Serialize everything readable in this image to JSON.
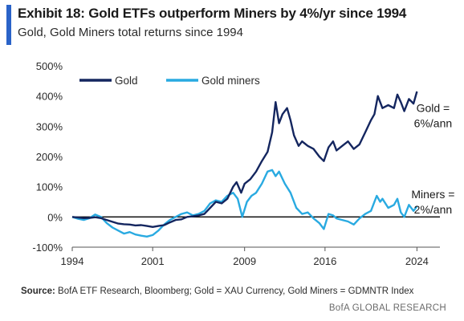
{
  "header": {
    "title": "Exhibit 18: Gold ETFs outperform Miners by 4%/yr since 1994",
    "subtitle": "Gold, Gold Miners total returns since 1994"
  },
  "colors": {
    "accent": "#2a63c8",
    "gold": "#14265f",
    "miners": "#29aae1",
    "zero_line": "#000000",
    "grid": "#d9d9d9"
  },
  "chart_data": {
    "type": "line",
    "title": "",
    "xlabel": "",
    "ylabel": "",
    "xlim": [
      1994,
      2026
    ],
    "ylim": [
      -100,
      500
    ],
    "x_ticks": [
      1994,
      2001,
      2009,
      2016,
      2024
    ],
    "x_tick_labels": [
      "1994",
      "2001",
      "2009",
      "2016",
      "2024"
    ],
    "y_ticks": [
      -100,
      0,
      100,
      200,
      300,
      400,
      500
    ],
    "y_tick_labels": [
      "-100%",
      "0%",
      "100%",
      "200%",
      "300%",
      "400%",
      "500%"
    ],
    "grid": false,
    "legend": {
      "position": "top-left",
      "entries": [
        "Gold",
        "Gold miners"
      ]
    },
    "series": [
      {
        "name": "Gold",
        "color": "#14265f",
        "points": [
          [
            1994.0,
            0
          ],
          [
            1994.5,
            -2
          ],
          [
            1995.0,
            -4
          ],
          [
            1995.5,
            -3
          ],
          [
            1996.0,
            -1
          ],
          [
            1996.5,
            -4
          ],
          [
            1997.0,
            -10
          ],
          [
            1997.5,
            -16
          ],
          [
            1998.0,
            -22
          ],
          [
            1998.5,
            -24
          ],
          [
            1999.0,
            -25
          ],
          [
            1999.5,
            -28
          ],
          [
            2000.0,
            -27
          ],
          [
            2000.5,
            -30
          ],
          [
            2001.0,
            -33
          ],
          [
            2001.5,
            -30
          ],
          [
            2002.0,
            -27
          ],
          [
            2002.5,
            -18
          ],
          [
            2003.0,
            -10
          ],
          [
            2003.5,
            -8
          ],
          [
            2004.0,
            0
          ],
          [
            2004.5,
            2
          ],
          [
            2005.0,
            5
          ],
          [
            2005.5,
            10
          ],
          [
            2006.0,
            30
          ],
          [
            2006.5,
            50
          ],
          [
            2007.0,
            45
          ],
          [
            2007.5,
            60
          ],
          [
            2008.0,
            100
          ],
          [
            2008.3,
            115
          ],
          [
            2008.7,
            80
          ],
          [
            2009.0,
            110
          ],
          [
            2009.5,
            125
          ],
          [
            2010.0,
            150
          ],
          [
            2010.5,
            185
          ],
          [
            2011.0,
            215
          ],
          [
            2011.4,
            280
          ],
          [
            2011.7,
            380
          ],
          [
            2012.0,
            310
          ],
          [
            2012.3,
            340
          ],
          [
            2012.7,
            360
          ],
          [
            2013.0,
            320
          ],
          [
            2013.3,
            270
          ],
          [
            2013.7,
            235
          ],
          [
            2014.0,
            250
          ],
          [
            2014.5,
            235
          ],
          [
            2015.0,
            225
          ],
          [
            2015.5,
            200
          ],
          [
            2015.9,
            185
          ],
          [
            2016.3,
            230
          ],
          [
            2016.7,
            250
          ],
          [
            2017.0,
            220
          ],
          [
            2017.5,
            235
          ],
          [
            2018.0,
            250
          ],
          [
            2018.5,
            225
          ],
          [
            2019.0,
            240
          ],
          [
            2019.5,
            280
          ],
          [
            2020.0,
            320
          ],
          [
            2020.3,
            340
          ],
          [
            2020.6,
            400
          ],
          [
            2021.0,
            360
          ],
          [
            2021.5,
            370
          ],
          [
            2022.0,
            360
          ],
          [
            2022.3,
            405
          ],
          [
            2022.6,
            380
          ],
          [
            2022.9,
            350
          ],
          [
            2023.3,
            390
          ],
          [
            2023.7,
            375
          ],
          [
            2024.0,
            415
          ]
        ]
      },
      {
        "name": "Gold miners",
        "color": "#29aae1",
        "points": [
          [
            1994.0,
            0
          ],
          [
            1994.5,
            -6
          ],
          [
            1995.0,
            -10
          ],
          [
            1995.5,
            -4
          ],
          [
            1996.0,
            8
          ],
          [
            1996.5,
            0
          ],
          [
            1997.0,
            -20
          ],
          [
            1997.5,
            -35
          ],
          [
            1998.0,
            -45
          ],
          [
            1998.5,
            -55
          ],
          [
            1999.0,
            -50
          ],
          [
            1999.5,
            -58
          ],
          [
            2000.0,
            -62
          ],
          [
            2000.5,
            -65
          ],
          [
            2001.0,
            -60
          ],
          [
            2001.5,
            -45
          ],
          [
            2002.0,
            -25
          ],
          [
            2002.5,
            -10
          ],
          [
            2003.0,
            0
          ],
          [
            2003.5,
            10
          ],
          [
            2004.0,
            15
          ],
          [
            2004.5,
            5
          ],
          [
            2005.0,
            10
          ],
          [
            2005.5,
            20
          ],
          [
            2006.0,
            45
          ],
          [
            2006.5,
            55
          ],
          [
            2007.0,
            50
          ],
          [
            2007.5,
            70
          ],
          [
            2008.0,
            80
          ],
          [
            2008.4,
            60
          ],
          [
            2008.8,
            0
          ],
          [
            2009.2,
            50
          ],
          [
            2009.6,
            70
          ],
          [
            2010.0,
            80
          ],
          [
            2010.5,
            110
          ],
          [
            2011.0,
            150
          ],
          [
            2011.4,
            155
          ],
          [
            2011.7,
            135
          ],
          [
            2012.0,
            150
          ],
          [
            2012.5,
            110
          ],
          [
            2013.0,
            80
          ],
          [
            2013.5,
            30
          ],
          [
            2014.0,
            10
          ],
          [
            2014.5,
            15
          ],
          [
            2015.0,
            -5
          ],
          [
            2015.5,
            -20
          ],
          [
            2015.9,
            -40
          ],
          [
            2016.3,
            10
          ],
          [
            2016.7,
            5
          ],
          [
            2017.0,
            -5
          ],
          [
            2017.5,
            -10
          ],
          [
            2018.0,
            -15
          ],
          [
            2018.5,
            -25
          ],
          [
            2019.0,
            -5
          ],
          [
            2019.5,
            10
          ],
          [
            2020.0,
            20
          ],
          [
            2020.5,
            70
          ],
          [
            2020.8,
            50
          ],
          [
            2021.0,
            60
          ],
          [
            2021.5,
            30
          ],
          [
            2022.0,
            40
          ],
          [
            2022.3,
            60
          ],
          [
            2022.6,
            15
          ],
          [
            2022.9,
            0
          ],
          [
            2023.3,
            40
          ],
          [
            2023.7,
            20
          ],
          [
            2024.0,
            35
          ]
        ]
      }
    ],
    "annotations": [
      {
        "text": "Gold =",
        "x": 2025.4,
        "y": 360
      },
      {
        "text": "6%/ann",
        "x": 2025.4,
        "y": 310
      },
      {
        "text": "Miners =",
        "x": 2025.4,
        "y": 75
      },
      {
        "text": "2%/ann",
        "x": 2025.4,
        "y": 25
      }
    ]
  },
  "footer": {
    "source_label": "Source:",
    "source_text": "BofA ETF Research,  Bloomberg; Gold = XAU Currency, Gold Miners = GDMNTR Index",
    "brand": "BofA GLOBAL RESEARCH"
  }
}
